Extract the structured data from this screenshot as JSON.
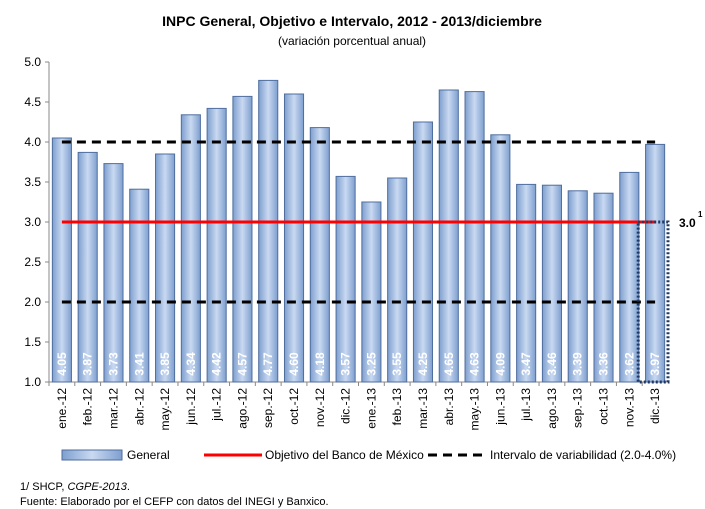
{
  "chart_data": {
    "type": "bar",
    "title": "INPC General, Objetivo e Intervalo, 2012 - 2013/diciembre",
    "subtitle": "(variación porcentual anual)",
    "categories": [
      "ene.-12",
      "feb.-12",
      "mar.-12",
      "abr.-12",
      "may.-12",
      "jun.-12",
      "jul.-12",
      "ago.-12",
      "sep.-12",
      "oct.-12",
      "nov.-12",
      "dic.-12",
      "ene.-13",
      "feb.-13",
      "mar.-13",
      "abr.-13",
      "may.-13",
      "jun.-13",
      "jul.-13",
      "ago.-13",
      "sep.-13",
      "oct.-13",
      "nov.-13",
      "dic.-13"
    ],
    "series": [
      {
        "name": "General",
        "color": "#9fb9e0",
        "values": [
          4.05,
          3.87,
          3.73,
          3.41,
          3.85,
          4.34,
          4.42,
          4.57,
          4.77,
          4.6,
          4.18,
          3.57,
          3.25,
          3.55,
          4.25,
          4.65,
          4.63,
          4.09,
          3.47,
          3.46,
          3.39,
          3.36,
          3.62,
          3.97
        ],
        "value_labels": [
          "4.05",
          "3.87",
          "3.73",
          "3.41",
          "3.85",
          "4.34",
          "4.42",
          "4.57",
          "4.77",
          "4.60",
          "4.18",
          "3.57",
          "3.25",
          "3.55",
          "4.25",
          "4.65",
          "4.63",
          "4.09",
          "3.47",
          "3.46",
          "3.39",
          "3.36",
          "3.62",
          "3.97"
        ]
      }
    ],
    "target": {
      "name": "Objetivo del Banco de México",
      "value": 3,
      "color": "#ff0000"
    },
    "interval": {
      "name": "Intervalo de variabilidad (2.0-4.0%)",
      "values": [
        2,
        4
      ],
      "color": "#000000"
    },
    "annotation": {
      "label": "3.0",
      "superscript": "1"
    },
    "ylim": [
      1,
      5
    ],
    "yticks": [
      {
        "value": 1,
        "label": "1.0"
      },
      1.5,
      {
        "value": 2,
        "label": "2.0"
      },
      2.5,
      {
        "value": 3,
        "label": "3.0"
      },
      3.5,
      {
        "value": 4,
        "label": "4.0"
      },
      4.5,
      {
        "value": 5,
        "label": "5.0"
      }
    ],
    "grid": false,
    "footnote": {
      "prefix": "1/ SHCP, ",
      "italic": "CGPE-2013",
      "suffix": "."
    },
    "source": "Fuente: Elaborado por el CEFP con datos del INEGI y Banxico."
  }
}
